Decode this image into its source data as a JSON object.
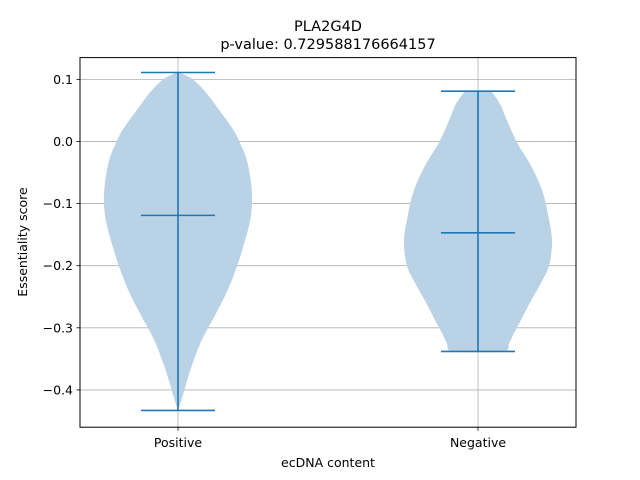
{
  "chart_data": {
    "type": "violin",
    "title": "PLA2G4D",
    "subtitle": "p-value: 0.729588176664157",
    "xlabel": "ecDNA content",
    "ylabel": "Essentiality score",
    "ylim": [
      -0.46,
      0.135
    ],
    "yticks": [
      0.1,
      0.0,
      -0.1,
      -0.2,
      -0.3,
      -0.4
    ],
    "ytick_labels": [
      "0.1",
      "0.0",
      "−0.1",
      "−0.2",
      "−0.3",
      "−0.4"
    ],
    "grid": true,
    "color": "#1f77b4",
    "fill_color": "#b9d2e6",
    "categories": [
      "Positive",
      "Negative"
    ],
    "violins": [
      {
        "name": "Positive",
        "min": -0.433,
        "max": 0.111,
        "mean": -0.119,
        "density": [
          [
            0.111,
            0.02
          ],
          [
            0.1,
            0.2
          ],
          [
            0.08,
            0.37
          ],
          [
            0.05,
            0.56
          ],
          [
            0.02,
            0.74
          ],
          [
            0.0,
            0.83
          ],
          [
            -0.03,
            0.93
          ],
          [
            -0.07,
            0.99
          ],
          [
            -0.1,
            1.0
          ],
          [
            -0.13,
            0.97
          ],
          [
            -0.17,
            0.88
          ],
          [
            -0.2,
            0.8
          ],
          [
            -0.24,
            0.67
          ],
          [
            -0.28,
            0.5
          ],
          [
            -0.32,
            0.32
          ],
          [
            -0.36,
            0.19
          ],
          [
            -0.39,
            0.11
          ],
          [
            -0.415,
            0.05
          ],
          [
            -0.433,
            0.0
          ]
        ]
      },
      {
        "name": "Negative",
        "min": -0.338,
        "max": 0.081,
        "mean": -0.147,
        "density": [
          [
            0.081,
            0.18
          ],
          [
            0.06,
            0.3
          ],
          [
            0.04,
            0.37
          ],
          [
            0.0,
            0.52
          ],
          [
            -0.04,
            0.72
          ],
          [
            -0.08,
            0.87
          ],
          [
            -0.12,
            0.95
          ],
          [
            -0.16,
            1.0
          ],
          [
            -0.2,
            0.96
          ],
          [
            -0.23,
            0.84
          ],
          [
            -0.26,
            0.7
          ],
          [
            -0.29,
            0.57
          ],
          [
            -0.31,
            0.48
          ],
          [
            -0.325,
            0.42
          ],
          [
            -0.338,
            0.33
          ]
        ]
      }
    ]
  }
}
